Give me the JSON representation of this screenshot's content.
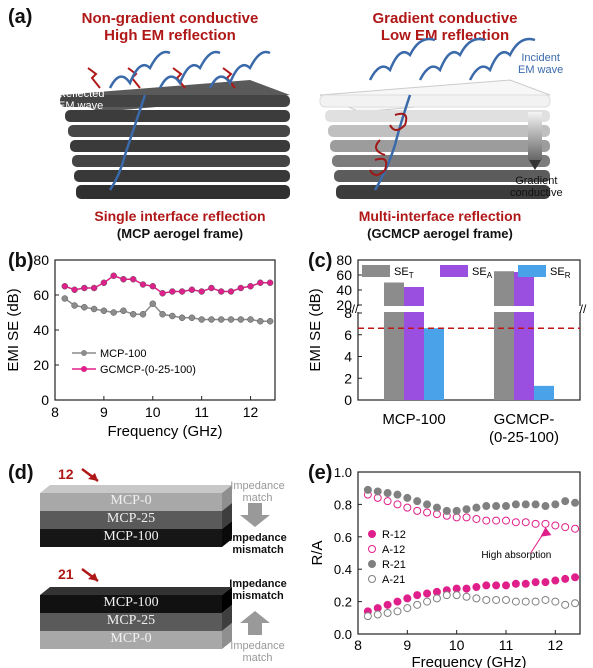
{
  "panel_a": {
    "label": "(a)",
    "left": {
      "title1": "Non-gradient conductive",
      "title2": "High EM reflection",
      "reflected": "Reflected\nEM wave",
      "caption1": "Single  interface reflection",
      "caption2": "(MCP aerogel frame)"
    },
    "right": {
      "title1": "Gradient conductive",
      "title2": "Low EM reflection",
      "incident": "Incident\nEM wave",
      "gradient": "Gradient\nconductive",
      "caption1": "Multi-interface reflection",
      "caption2": "(GCMCP aerogel frame)"
    }
  },
  "panel_d": {
    "label": "(d)",
    "top_num": "12",
    "bottom_num": "21",
    "top_layers": [
      "MCP-0",
      "MCP-25",
      "MCP-100"
    ],
    "bottom_layers": [
      "MCP-100",
      "MCP-25",
      "MCP-0"
    ],
    "impedance_match": "Impedance\nmatch",
    "impedance_mismatch": "Impedance\nmismatch"
  },
  "colors": {
    "gray_series": "#8c8c8c",
    "pink_series": "#e0208a",
    "purple_bar": "#9b4fe0",
    "blue_bar": "#4aa3e8",
    "red_text": "#b01818"
  },
  "chart_data": [
    {
      "id": "b",
      "panel_label": "(b)",
      "type": "line",
      "xlabel": "Frequency (GHz)",
      "ylabel": "EMI SE (dB)",
      "xlim": [
        8,
        12.5
      ],
      "ylim": [
        0,
        80
      ],
      "xticks": [
        8,
        9,
        10,
        11,
        12
      ],
      "yticks": [
        0,
        20,
        40,
        60,
        80
      ],
      "legend_position": "center",
      "series": [
        {
          "name": "MCP-100",
          "color": "#8c8c8c",
          "x": [
            8.2,
            8.4,
            8.6,
            8.8,
            9.0,
            9.2,
            9.4,
            9.6,
            9.8,
            10.0,
            10.2,
            10.4,
            10.6,
            10.8,
            11.0,
            11.2,
            11.4,
            11.6,
            11.8,
            12.0,
            12.2,
            12.4
          ],
          "y": [
            58,
            54,
            53,
            52,
            51,
            50,
            51,
            49,
            49,
            55,
            49,
            48,
            47,
            47,
            46,
            46,
            46,
            46,
            46,
            46,
            45,
            45
          ]
        },
        {
          "name": "GCMCP-(0-25-100)",
          "color": "#e0208a",
          "x": [
            8.2,
            8.4,
            8.6,
            8.8,
            9.0,
            9.2,
            9.4,
            9.6,
            9.8,
            10.0,
            10.2,
            10.4,
            10.6,
            10.8,
            11.0,
            11.2,
            11.4,
            11.6,
            11.8,
            12.0,
            12.2,
            12.4
          ],
          "y": [
            65,
            63,
            64,
            64,
            67,
            71,
            69,
            69,
            66,
            65,
            61,
            62,
            62,
            63,
            62,
            64,
            62,
            62,
            64,
            65,
            67,
            67
          ]
        }
      ]
    },
    {
      "id": "c",
      "panel_label": "(c)",
      "type": "bar",
      "ylabel": "EMI SE (dB)",
      "categories": [
        "MCP-100",
        "GCMCP-\n(0-25-100)"
      ],
      "axis_break": true,
      "yticks_lower": [
        0,
        2,
        4,
        6,
        8
      ],
      "yticks_upper": [
        20,
        40,
        60,
        80
      ],
      "legend": [
        "SE_T",
        "SE_A",
        "SE_R"
      ],
      "series": [
        {
          "name": "SE_T",
          "color": "#8c8c8c",
          "values": [
            50,
            65
          ]
        },
        {
          "name": "SE_A",
          "color": "#9b4fe0",
          "values": [
            44,
            64
          ]
        },
        {
          "name": "SE_R",
          "color": "#4aa3e8",
          "values": [
            6.6,
            1.3
          ]
        }
      ],
      "reference_line": 6.6
    },
    {
      "id": "e",
      "panel_label": "(e)",
      "type": "scatter",
      "xlabel": "Frequency (GHz)",
      "ylabel": "R/A",
      "xlim": [
        8,
        12.5
      ],
      "ylim": [
        0.0,
        1.0
      ],
      "xticks": [
        8,
        9,
        10,
        11,
        12
      ],
      "yticks": [
        0.0,
        0.2,
        0.4,
        0.6,
        0.8,
        1.0
      ],
      "legend_position": "left",
      "annotation": "High absorption",
      "series": [
        {
          "name": "R-12",
          "color": "#e0208a",
          "filled": true,
          "x": [
            8.2,
            8.4,
            8.6,
            8.8,
            9.0,
            9.2,
            9.4,
            9.6,
            9.8,
            10.0,
            10.2,
            10.4,
            10.6,
            10.8,
            11.0,
            11.2,
            11.4,
            11.6,
            11.8,
            12.0,
            12.2,
            12.4
          ],
          "y": [
            0.14,
            0.16,
            0.18,
            0.2,
            0.22,
            0.24,
            0.25,
            0.26,
            0.27,
            0.28,
            0.28,
            0.29,
            0.3,
            0.3,
            0.3,
            0.31,
            0.31,
            0.32,
            0.32,
            0.33,
            0.34,
            0.35
          ]
        },
        {
          "name": "A-12",
          "color": "#e0208a",
          "filled": false,
          "x": [
            8.2,
            8.4,
            8.6,
            8.8,
            9.0,
            9.2,
            9.4,
            9.6,
            9.8,
            10.0,
            10.2,
            10.4,
            10.6,
            10.8,
            11.0,
            11.2,
            11.4,
            11.6,
            11.8,
            12.0,
            12.2,
            12.4
          ],
          "y": [
            0.86,
            0.84,
            0.82,
            0.8,
            0.78,
            0.76,
            0.75,
            0.74,
            0.73,
            0.72,
            0.72,
            0.71,
            0.7,
            0.7,
            0.7,
            0.69,
            0.69,
            0.68,
            0.68,
            0.67,
            0.66,
            0.65
          ]
        },
        {
          "name": "R-21",
          "color": "#808080",
          "filled": true,
          "x": [
            8.2,
            8.4,
            8.6,
            8.8,
            9.0,
            9.2,
            9.4,
            9.6,
            9.8,
            10.0,
            10.2,
            10.4,
            10.6,
            10.8,
            11.0,
            11.2,
            11.4,
            11.6,
            11.8,
            12.0,
            12.2,
            12.4
          ],
          "y": [
            0.89,
            0.88,
            0.87,
            0.86,
            0.84,
            0.82,
            0.8,
            0.78,
            0.76,
            0.76,
            0.77,
            0.78,
            0.79,
            0.79,
            0.79,
            0.8,
            0.8,
            0.8,
            0.79,
            0.8,
            0.82,
            0.81
          ]
        },
        {
          "name": "A-21",
          "color": "#808080",
          "filled": false,
          "x": [
            8.2,
            8.4,
            8.6,
            8.8,
            9.0,
            9.2,
            9.4,
            9.6,
            9.8,
            10.0,
            10.2,
            10.4,
            10.6,
            10.8,
            11.0,
            11.2,
            11.4,
            11.6,
            11.8,
            12.0,
            12.2,
            12.4
          ],
          "y": [
            0.11,
            0.12,
            0.13,
            0.14,
            0.16,
            0.18,
            0.2,
            0.22,
            0.24,
            0.24,
            0.23,
            0.22,
            0.21,
            0.21,
            0.21,
            0.2,
            0.2,
            0.2,
            0.21,
            0.2,
            0.18,
            0.19
          ]
        }
      ]
    }
  ]
}
